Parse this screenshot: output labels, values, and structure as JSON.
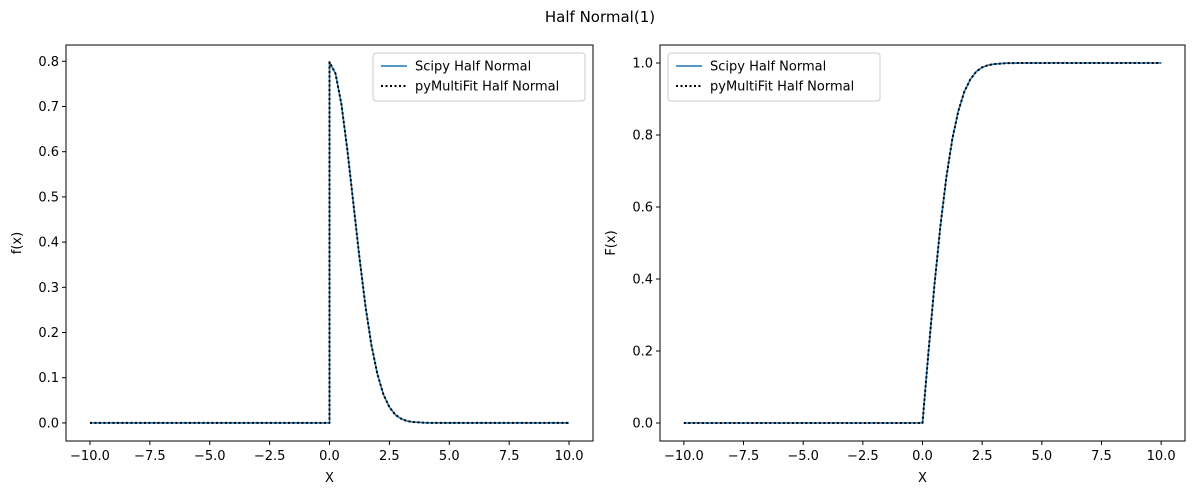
{
  "figure": {
    "suptitle": "Half Normal(1)"
  },
  "chart_data": [
    {
      "type": "line",
      "xlabel": "X",
      "ylabel": "f(x)",
      "xlim": [
        -11,
        11
      ],
      "ylim": [
        -0.04,
        0.836
      ],
      "xticks": [
        -10.0,
        -7.5,
        -5.0,
        -2.5,
        0.0,
        2.5,
        5.0,
        7.5,
        10.0
      ],
      "xtick_labels": [
        "−10.0",
        "−7.5",
        "−5.0",
        "−2.5",
        "0.0",
        "2.5",
        "5.0",
        "7.5",
        "10.0"
      ],
      "yticks": [
        0.0,
        0.1,
        0.2,
        0.3,
        0.4,
        0.5,
        0.6,
        0.7,
        0.8
      ],
      "ytick_labels": [
        "0.0",
        "0.1",
        "0.2",
        "0.3",
        "0.4",
        "0.5",
        "0.6",
        "0.7",
        "0.8"
      ],
      "legend_position": "top-right",
      "grid": false,
      "series": [
        {
          "name": "Scipy Half Normal",
          "color": "#1f77b4",
          "style": "solid",
          "x": [
            -10,
            -5,
            0,
            -0.0001,
            0.0,
            0.25,
            0.5,
            0.75,
            1.0,
            1.25,
            1.5,
            1.75,
            2.0,
            2.25,
            2.5,
            2.75,
            3.0,
            3.25,
            3.5,
            4.0,
            5.0,
            10.0
          ],
          "values": [
            0,
            0,
            0,
            0,
            0.798,
            0.773,
            0.704,
            0.602,
            0.484,
            0.366,
            0.259,
            0.172,
            0.108,
            0.063,
            0.035,
            0.018,
            0.009,
            0.004,
            0.002,
            0.0003,
            1e-06,
            0
          ]
        },
        {
          "name": "pyMultiFit Half Normal",
          "color": "#000000",
          "style": "dotted",
          "x": [
            -10,
            -5,
            0,
            -0.0001,
            0.0,
            0.25,
            0.5,
            0.75,
            1.0,
            1.25,
            1.5,
            1.75,
            2.0,
            2.25,
            2.5,
            2.75,
            3.0,
            3.25,
            3.5,
            4.0,
            5.0,
            10.0
          ],
          "values": [
            0,
            0,
            0,
            0,
            0.798,
            0.773,
            0.704,
            0.602,
            0.484,
            0.366,
            0.259,
            0.172,
            0.108,
            0.063,
            0.035,
            0.018,
            0.009,
            0.004,
            0.002,
            0.0003,
            1e-06,
            0
          ]
        }
      ]
    },
    {
      "type": "line",
      "xlabel": "X",
      "ylabel": "F(x)",
      "xlim": [
        -11,
        11
      ],
      "ylim": [
        -0.05,
        1.05
      ],
      "xticks": [
        -10.0,
        -7.5,
        -5.0,
        -2.5,
        0.0,
        2.5,
        5.0,
        7.5,
        10.0
      ],
      "xtick_labels": [
        "−10.0",
        "−7.5",
        "−5.0",
        "−2.5",
        "0.0",
        "2.5",
        "5.0",
        "7.5",
        "10.0"
      ],
      "yticks": [
        0.0,
        0.2,
        0.4,
        0.6,
        0.8,
        1.0
      ],
      "ytick_labels": [
        "0.0",
        "0.2",
        "0.4",
        "0.6",
        "0.8",
        "1.0"
      ],
      "legend_position": "top-left",
      "grid": false,
      "series": [
        {
          "name": "Scipy Half Normal",
          "color": "#1f77b4",
          "style": "solid",
          "x": [
            -10,
            -5,
            0,
            0.25,
            0.5,
            0.75,
            1.0,
            1.25,
            1.5,
            1.75,
            2.0,
            2.25,
            2.5,
            2.75,
            3.0,
            3.5,
            4.0,
            5.0,
            10.0
          ],
          "values": [
            0,
            0,
            0,
            0.197,
            0.383,
            0.547,
            0.683,
            0.789,
            0.866,
            0.92,
            0.954,
            0.976,
            0.988,
            0.994,
            0.997,
            0.9995,
            0.99994,
            1.0,
            1.0
          ]
        },
        {
          "name": "pyMultiFit Half Normal",
          "color": "#000000",
          "style": "dotted",
          "x": [
            -10,
            -5,
            0,
            0.25,
            0.5,
            0.75,
            1.0,
            1.25,
            1.5,
            1.75,
            2.0,
            2.25,
            2.5,
            2.75,
            3.0,
            3.5,
            4.0,
            5.0,
            10.0
          ],
          "values": [
            0,
            0,
            0,
            0.197,
            0.383,
            0.547,
            0.683,
            0.789,
            0.866,
            0.92,
            0.954,
            0.976,
            0.988,
            0.994,
            0.997,
            0.9995,
            0.99994,
            1.0,
            1.0
          ]
        }
      ]
    }
  ]
}
